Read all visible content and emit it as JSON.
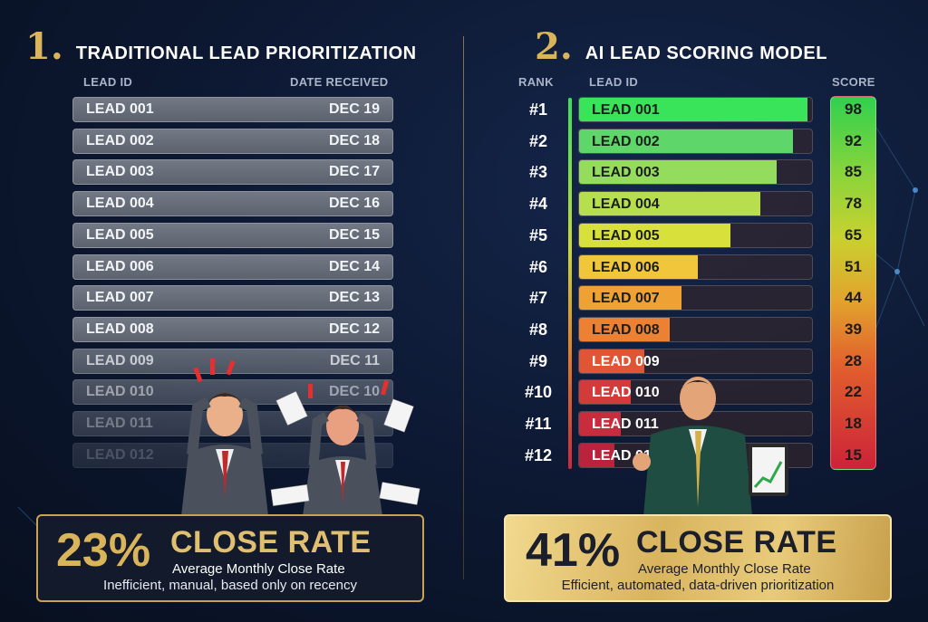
{
  "left": {
    "number": "1.",
    "title": "TRADITIONAL LEAD PRIORITIZATION",
    "col_lead": "LEAD ID",
    "col_date": "DATE RECEIVED",
    "rows": [
      {
        "lead": "LEAD 001",
        "date": "DEC 19"
      },
      {
        "lead": "LEAD 002",
        "date": "DEC 18"
      },
      {
        "lead": "LEAD 003",
        "date": "DEC 17"
      },
      {
        "lead": "LEAD 004",
        "date": "DEC 16"
      },
      {
        "lead": "LEAD 005",
        "date": "DEC 15"
      },
      {
        "lead": "LEAD 006",
        "date": "DEC 14"
      },
      {
        "lead": "LEAD 007",
        "date": "DEC 13"
      },
      {
        "lead": "LEAD 008",
        "date": "DEC 12"
      },
      {
        "lead": "LEAD 009",
        "date": "DEC 11"
      },
      {
        "lead": "LEAD 010",
        "date": "DEC 10"
      },
      {
        "lead": "LEAD 011",
        "date": ""
      },
      {
        "lead": "LEAD 012",
        "date": ""
      }
    ],
    "stat": "23%",
    "stat_label": "CLOSE RATE",
    "stat_sub": "Average Monthly Close Rate",
    "stat_note": "Inefficient, manual, based only on recency"
  },
  "right": {
    "number": "2.",
    "title": "AI LEAD SCORING MODEL",
    "col_rank": "RANK",
    "col_lead": "LEAD ID",
    "col_score": "SCORE",
    "rows": [
      {
        "rank": "#1",
        "lead": "LEAD 001",
        "score": 98,
        "color": "#39e35a"
      },
      {
        "rank": "#2",
        "lead": "LEAD 002",
        "score": 92,
        "color": "#5ed66a"
      },
      {
        "rank": "#3",
        "lead": "LEAD 003",
        "score": 85,
        "color": "#93dc5e"
      },
      {
        "rank": "#4",
        "lead": "LEAD 004",
        "score": 78,
        "color": "#b7de4e"
      },
      {
        "rank": "#5",
        "lead": "LEAD 005",
        "score": 65,
        "color": "#d8e03c"
      },
      {
        "rank": "#6",
        "lead": "LEAD 006",
        "score": 51,
        "color": "#f2c63a"
      },
      {
        "rank": "#7",
        "lead": "LEAD 007",
        "score": 44,
        "color": "#f0a134"
      },
      {
        "rank": "#8",
        "lead": "LEAD 008",
        "score": 39,
        "color": "#ec8033"
      },
      {
        "rank": "#9",
        "lead": "LEAD 009",
        "score": 28,
        "color": "#e05534"
      },
      {
        "rank": "#10",
        "lead": "LEAD 010",
        "score": 22,
        "color": "#d33a3a"
      },
      {
        "rank": "#11",
        "lead": "LEAD 011",
        "score": 18,
        "color": "#c92c3c"
      },
      {
        "rank": "#12",
        "lead": "LEAD 012",
        "score": 15,
        "color": "#b9233b"
      }
    ],
    "stat": "41%",
    "stat_label": "CLOSE RATE",
    "stat_sub": "Average Monthly Close Rate",
    "stat_note": "Efficient, automated, data-driven prioritization"
  },
  "colors": {
    "gold": "#d9b45a",
    "navy": "#0c1730"
  }
}
